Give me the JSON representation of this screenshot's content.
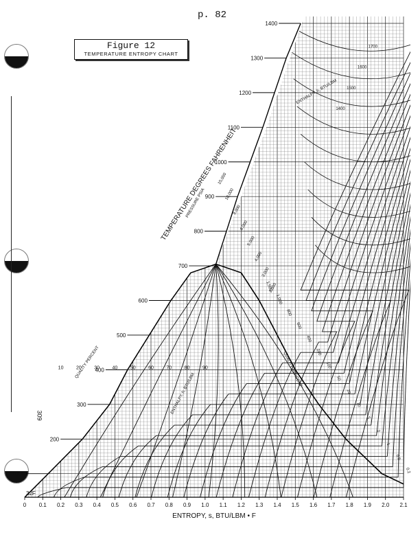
{
  "page": {
    "page_number": "p. 82",
    "margin_number": "309"
  },
  "figure": {
    "number": "Figure 12",
    "title": "TEMPERATURE ENTROPY CHART"
  },
  "chart_data": {
    "type": "line",
    "title": "TEMPERATURE ENTROPY CHART",
    "xlabel": "ENTROPY, s, BTU/LBM • F",
    "ylabel": "TEMPERATURE DEGREES FAHRENHEIT",
    "xlim": [
      0,
      2.1
    ],
    "ylim": [
      32,
      1400
    ],
    "x_ticks": [
      "0",
      "0.1",
      "0.2",
      "0.3",
      "0.4",
      "0.5",
      "0.6",
      "0.7",
      "0.8",
      "0.9",
      "1.0",
      "1.1",
      "1.2",
      "1.3",
      "1.4",
      "1.5",
      "1.6",
      "1.7",
      "1.8",
      "1.9",
      "2.0",
      "2.1"
    ],
    "y_ticks": [
      {
        "value": 100,
        "label": "100F"
      },
      {
        "value": 200,
        "label": "200"
      },
      {
        "value": 300,
        "label": "300"
      },
      {
        "value": 400,
        "label": "400"
      },
      {
        "value": 500,
        "label": "500"
      },
      {
        "value": 600,
        "label": "600"
      },
      {
        "value": 700,
        "label": "700"
      },
      {
        "value": 800,
        "label": "800"
      },
      {
        "value": 900,
        "label": "900"
      },
      {
        "value": 1000,
        "label": "1000"
      },
      {
        "value": 1100,
        "label": "1100"
      },
      {
        "value": 1200,
        "label": "1200"
      },
      {
        "value": 1300,
        "label": "1300"
      },
      {
        "value": 1400,
        "label": "1400"
      }
    ],
    "low_tick_label": "32F",
    "grid": true,
    "saturation_dome": {
      "critical_point": [
        1.06,
        705
      ],
      "liquid_line": [
        [
          0.0,
          32
        ],
        [
          0.13,
          100
        ],
        [
          0.32,
          200
        ],
        [
          0.47,
          300
        ],
        [
          0.57,
          400
        ],
        [
          0.69,
          500
        ],
        [
          0.81,
          600
        ],
        [
          0.92,
          680
        ],
        [
          1.06,
          705
        ]
      ],
      "vapor_line": [
        [
          1.06,
          705
        ],
        [
          1.2,
          680
        ],
        [
          1.3,
          600
        ],
        [
          1.4,
          500
        ],
        [
          1.5,
          400
        ],
        [
          1.63,
          300
        ],
        [
          1.78,
          200
        ],
        [
          1.98,
          100
        ],
        [
          2.1,
          70
        ]
      ]
    },
    "quality_labels": [
      "10",
      "20",
      "30",
      "40",
      "50",
      "60",
      "70",
      "80",
      "90"
    ],
    "quality_caption_left": "QUALITY PERCENT",
    "quality_caption_right": "QUALITY PERCENT",
    "enthalpy_caption": "ENTHALPY, h, BTU/LBM",
    "enthalpy_upper_caption": "ENTHALPY, h, BTU/LBM",
    "enthalpy_upper_labels": [
      "1700",
      "1600",
      "1500",
      "1400"
    ],
    "pressure_caption": "PRESSURE PSIA",
    "pressure_labels": [
      "15,000",
      "10,000",
      "8,000",
      "6,000",
      "5,000",
      "4,000",
      "3,000",
      "2,000",
      "1,500",
      "1,000",
      "800",
      "600",
      "400",
      "200",
      "100",
      "50",
      "20",
      "10",
      "5",
      "2",
      "1",
      "0.5",
      "0.2"
    ]
  }
}
